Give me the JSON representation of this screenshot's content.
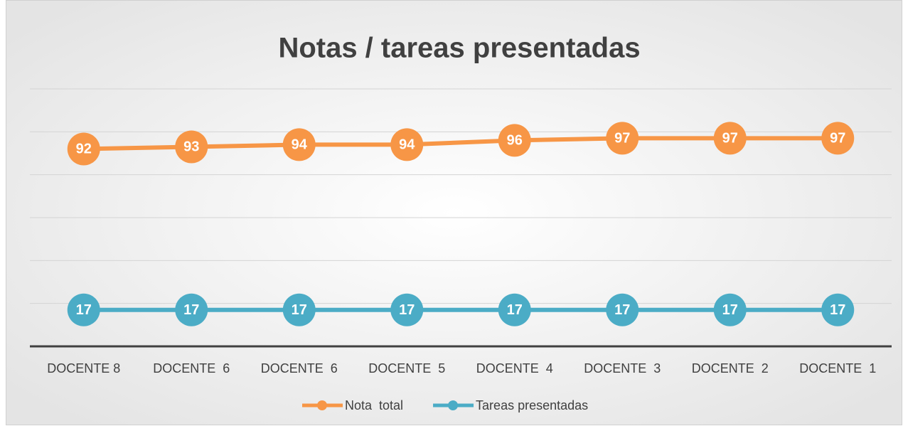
{
  "chart_data": {
    "type": "line",
    "title": "Notas / tareas presentadas",
    "categories": [
      "DOCENTE 8",
      "DOCENTE  6",
      "DOCENTE  6",
      "DOCENTE  5",
      "DOCENTE  4",
      "DOCENTE  3",
      "DOCENTE  2",
      "DOCENTE  1"
    ],
    "series": [
      {
        "name": "Nota  total",
        "color": "#f79646",
        "values": [
          92,
          93,
          94,
          94,
          96,
          97,
          97,
          97
        ]
      },
      {
        "name": "Tareas presentadas",
        "color": "#4bacc6",
        "values": [
          17,
          17,
          17,
          17,
          17,
          17,
          17,
          17
        ]
      }
    ],
    "ylim": [
      0,
      120
    ],
    "yticks": [
      0,
      20,
      40,
      60,
      80,
      100,
      120
    ],
    "grid": true,
    "legend": "bottom"
  }
}
